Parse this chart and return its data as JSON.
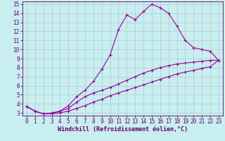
{
  "xlabel": "Windchill (Refroidissement éolien,°C)",
  "bg_color": "#c8eef0",
  "line_color": "#990099",
  "xlim": [
    -0.5,
    23.5
  ],
  "ylim": [
    2.7,
    15.3
  ],
  "xticks": [
    0,
    1,
    2,
    3,
    4,
    5,
    6,
    7,
    8,
    9,
    10,
    11,
    12,
    13,
    14,
    15,
    16,
    17,
    18,
    19,
    20,
    21,
    22,
    23
  ],
  "yticks": [
    3,
    4,
    5,
    6,
    7,
    8,
    9,
    10,
    11,
    12,
    13,
    14,
    15
  ],
  "line1_x": [
    0,
    1,
    2,
    3,
    4,
    5,
    6,
    7,
    8,
    9,
    10,
    11,
    12,
    13,
    14,
    15,
    16,
    17,
    18,
    19,
    20,
    21,
    22,
    23
  ],
  "line1_y": [
    3.7,
    3.2,
    2.9,
    3.0,
    3.2,
    3.8,
    4.8,
    5.5,
    6.5,
    7.8,
    9.4,
    12.2,
    13.8,
    13.3,
    14.2,
    15.0,
    14.6,
    14.0,
    12.6,
    11.0,
    10.2,
    10.0,
    9.8,
    8.8
  ],
  "line2_x": [
    0,
    1,
    2,
    3,
    4,
    5,
    6,
    7,
    8,
    9,
    10,
    11,
    12,
    13,
    14,
    15,
    16,
    17,
    18,
    19,
    20,
    21,
    22,
    23
  ],
  "line2_y": [
    3.7,
    3.2,
    2.9,
    2.9,
    3.2,
    3.5,
    4.2,
    4.8,
    5.2,
    5.5,
    5.8,
    6.2,
    6.6,
    7.0,
    7.4,
    7.7,
    8.0,
    8.2,
    8.4,
    8.5,
    8.6,
    8.7,
    8.8,
    8.8
  ],
  "line3_x": [
    0,
    1,
    2,
    3,
    4,
    5,
    6,
    7,
    8,
    9,
    10,
    11,
    12,
    13,
    14,
    15,
    16,
    17,
    18,
    19,
    20,
    21,
    22,
    23
  ],
  "line3_y": [
    3.7,
    3.2,
    2.9,
    2.9,
    3.0,
    3.2,
    3.5,
    3.8,
    4.2,
    4.5,
    4.9,
    5.2,
    5.5,
    5.8,
    6.1,
    6.4,
    6.7,
    7.0,
    7.3,
    7.5,
    7.7,
    7.9,
    8.1,
    8.8
  ],
  "grid_color": "#aacccc",
  "xlabel_fontsize": 6,
  "tick_fontsize": 5.5
}
